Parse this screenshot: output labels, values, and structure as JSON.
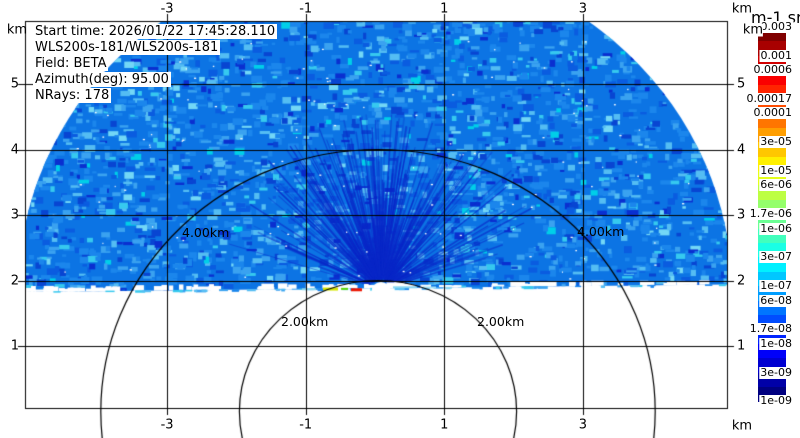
{
  "header": {
    "lines": [
      "Start time: 2026/01/22 17:45:28.110",
      "WLS200s-181/WLS200s-181",
      "Field: BETA",
      "Azimuth(deg): 95.00",
      "NRays: 178"
    ]
  },
  "axes": {
    "unit": "km",
    "x_ticks": [
      -3,
      -1,
      1,
      3
    ],
    "y_ticks": [
      5,
      4,
      3,
      2,
      1
    ]
  },
  "rings": [
    {
      "label": "2.00km",
      "radius_km": 2
    },
    {
      "label": "4.00km",
      "radius_km": 4
    }
  ],
  "colorbar": {
    "units": "m-1 sr-1",
    "n_bands": 26,
    "labels": [
      {
        "text": "0.003",
        "band": 0
      },
      {
        "text": "0.001",
        "band": 2
      },
      {
        "text": "0.0006",
        "band": 3
      },
      {
        "text": "0.00017",
        "band": 5
      },
      {
        "text": "0.0001",
        "band": 6
      },
      {
        "text": "3e-05",
        "band": 8
      },
      {
        "text": "1e-05",
        "band": 10
      },
      {
        "text": "6e-06",
        "band": 11
      },
      {
        "text": "1.7e-06",
        "band": 13
      },
      {
        "text": "1e-06",
        "band": 14
      },
      {
        "text": "3e-07",
        "band": 16
      },
      {
        "text": "1e-07",
        "band": 18
      },
      {
        "text": "6e-08",
        "band": 19
      },
      {
        "text": "1.7e-08",
        "band": 21
      },
      {
        "text": "1e-08",
        "band": 22
      },
      {
        "text": "3e-09",
        "band": 24
      },
      {
        "text": "1e-09",
        "band": 26
      }
    ]
  },
  "colors": {
    "base_data": "#0c74e4",
    "speckles": [
      "#1b86ec",
      "#3aa2f0",
      "#54bdf3",
      "#36c9ef",
      "#73d7f6",
      "#0a5ce0",
      "#0845d2",
      "#0a2fd0",
      "#00cfe8"
    ],
    "streak": "rgba(10,40,200,0.55)",
    "grid": "#000000",
    "background": "#ffffff"
  },
  "chart_data": {
    "type": "heatmap",
    "projection": "lidar-scan-dome",
    "field": "BETA",
    "units": "m-1 sr-1",
    "start_time": "2026/01/22 17:45:28.110",
    "instrument": "WLS200s-181/WLS200s-181",
    "azimuth_deg": 95.0,
    "n_rays": 178,
    "x_axis": {
      "unit": "km",
      "ticks": [
        -3,
        -1,
        1,
        3
      ],
      "range": [
        -5.05,
        5.08
      ]
    },
    "y_axis": {
      "unit": "km",
      "ticks": [
        1,
        2,
        3,
        4,
        5
      ],
      "range": [
        0.05,
        5.91
      ]
    },
    "max_range_km": 5.15,
    "range_rings_km": [
      2.0,
      4.0
    ],
    "scan_origin_km": {
      "x": 0.09,
      "y": 1.87
    },
    "color_scale_boundaries": [
      0.003,
      0.0017,
      0.001,
      0.0006,
      0.0003,
      0.00017,
      0.0001,
      6e-05,
      3e-05,
      1.7e-05,
      1e-05,
      6e-06,
      3e-06,
      1.7e-06,
      1e-06,
      6e-07,
      3e-07,
      1.7e-07,
      1e-07,
      6e-08,
      3e-08,
      1.7e-08,
      1e-08,
      6e-09,
      3e-09,
      1.7e-09,
      1e-09
    ],
    "dominant_value_range": [
      1e-08,
      1e-06
    ],
    "description": "Speckled blue backscatter half-dome above the horizon line; dark-blue radial streaks converge at the white scan-origin dot; sparse white specks; a few yellow/red/green surface returns near the origin; black km grid and 2/4 km range-ring arcs overlay the data."
  }
}
